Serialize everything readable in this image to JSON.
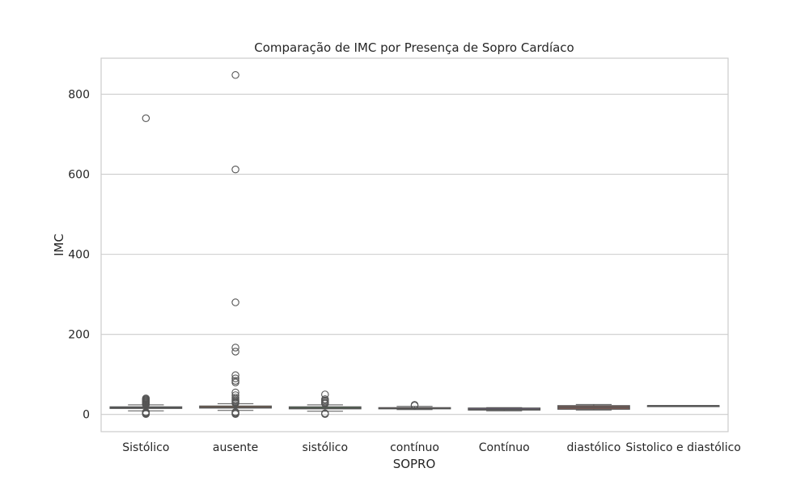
{
  "chart_data": {
    "type": "box",
    "title": "Comparação de IMC por Presença de Sopro Cardíaco",
    "xlabel": "SOPRO",
    "ylabel": "IMC",
    "ylim": [
      -43,
      890
    ],
    "yticks": [
      0,
      200,
      400,
      600,
      800
    ],
    "grid": "horizontal",
    "categories": [
      "Sistólico",
      "ausente",
      "sistólico",
      "contínuo",
      "Contínuo",
      "diastólico",
      "Sistolico e diastólico"
    ],
    "boxes": [
      {
        "category": "Sistólico",
        "whisker_low": 9,
        "q1": 15,
        "median": 17,
        "q3": 19,
        "whisker_high": 24,
        "color": "#3274a1",
        "outliers": [
          740,
          40,
          38,
          36,
          34,
          32,
          30,
          28,
          26,
          25,
          6,
          5,
          4,
          3,
          2,
          1
        ]
      },
      {
        "category": "ausente",
        "whisker_low": 10,
        "q1": 16,
        "median": 18,
        "q3": 21,
        "whisker_high": 27,
        "color": "#e1812c",
        "outliers": [
          848,
          612,
          280,
          167,
          157,
          98,
          90,
          84,
          80,
          55,
          48,
          42,
          38,
          35,
          32,
          30,
          28,
          6,
          4,
          2,
          1
        ]
      },
      {
        "category": "sistólico",
        "whisker_low": 8,
        "q1": 14,
        "median": 16,
        "q3": 19,
        "whisker_high": 24,
        "color": "#3a923a",
        "outliers": [
          50,
          38,
          35,
          32,
          29,
          27,
          3,
          1
        ]
      },
      {
        "category": "contínuo",
        "whisker_low": 12,
        "q1": 14,
        "median": 15,
        "q3": 17,
        "whisker_high": 20,
        "color": "#c03d3e",
        "outliers": [
          24,
          22
        ]
      },
      {
        "category": "Contínuo",
        "whisker_low": 9,
        "q1": 11,
        "median": 13,
        "q3": 16,
        "whisker_high": 17,
        "color": "#9372b2",
        "outliers": []
      },
      {
        "category": "diastólico",
        "whisker_low": 11,
        "q1": 13,
        "median": 18,
        "q3": 22,
        "whisker_high": 25,
        "color": "#845b53",
        "outliers": []
      },
      {
        "category": "Sistolico e diastólico",
        "whisker_low": 21,
        "q1": 21,
        "median": 22,
        "q3": 22,
        "whisker_high": 22,
        "color": "#d684bd",
        "outliers": []
      }
    ]
  }
}
